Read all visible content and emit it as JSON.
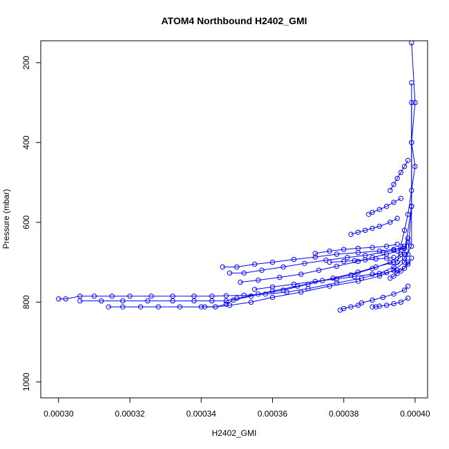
{
  "chart_data": {
    "type": "line",
    "title": "ATOM4 Northbound H2402_GMI",
    "xlabel": "H2402_GMI",
    "ylabel": "Pressure (mbar)",
    "xlim": [
      0.000295,
      0.0004035
    ],
    "ylim": [
      1040,
      145
    ],
    "y_reversed": true,
    "x_ticks": [
      "0.00030",
      "0.00032",
      "0.00034",
      "0.00036",
      "0.00038",
      "0.00040"
    ],
    "x_tick_values": [
      0.0003,
      0.00032,
      0.00034,
      0.00036,
      0.00038,
      0.0004
    ],
    "y_ticks": [
      "200",
      "400",
      "600",
      "800",
      "1000"
    ],
    "y_tick_values": [
      200,
      400,
      600,
      800,
      1000
    ],
    "marker": "open-circle",
    "series_color": "#0000ff",
    "grid": false,
    "series": [
      {
        "x": [
          0.0003,
          0.000302,
          0.000306,
          0.00031,
          0.000315,
          0.00032,
          0.000326,
          0.000332,
          0.000338,
          0.000343,
          0.000347,
          0.000352,
          0.000358,
          0.000364,
          0.00037,
          0.000378,
          0.000385,
          0.00039,
          0.000394,
          0.000397,
          0.000399,
          0.000399,
          0.000399,
          0.000399
        ],
        "y": [
          792,
          792,
          785,
          785,
          785,
          785,
          785,
          785,
          785,
          785,
          784,
          783,
          780,
          775,
          766,
          752,
          740,
          728,
          712,
          690,
          660,
          560,
          400,
          250
        ]
      },
      {
        "x": [
          0.000314,
          0.000318,
          0.000323,
          0.000328,
          0.000334,
          0.00034,
          0.000344,
          0.000348,
          0.000354,
          0.00036,
          0.000368,
          0.000376,
          0.000384,
          0.00039,
          0.000394,
          0.000397,
          0.000398,
          0.000399,
          0.000399
        ],
        "y": [
          812,
          812,
          812,
          812,
          812,
          812,
          812,
          808,
          800,
          788,
          775,
          760,
          748,
          735,
          720,
          700,
          680,
          560,
          300
        ]
      },
      {
        "x": [
          0.000306,
          0.000312,
          0.000318,
          0.000325,
          0.000332,
          0.000338,
          0.000343,
          0.000347,
          0.00035,
          0.000356,
          0.000363,
          0.00037,
          0.000377,
          0.000384,
          0.000389,
          0.000394,
          0.000397,
          0.000399
        ],
        "y": [
          797,
          797,
          797,
          797,
          797,
          797,
          797,
          797,
          790,
          780,
          770,
          755,
          740,
          725,
          712,
          700,
          680,
          560
        ]
      },
      {
        "x": [
          0.000341,
          0.000344,
          0.000347,
          0.000349,
          0.000354,
          0.00036,
          0.000367,
          0.000374,
          0.000382,
          0.000388,
          0.000393,
          0.000396,
          0.000398
        ],
        "y": [
          812,
          812,
          805,
          795,
          785,
          772,
          760,
          746,
          732,
          716,
          700,
          680,
          650
        ]
      },
      {
        "x": [
          0.000346,
          0.00035,
          0.000355,
          0.00036,
          0.000366,
          0.000372,
          0.000378,
          0.000384,
          0.00039,
          0.000394,
          0.000397,
          0.000398
        ],
        "y": [
          712,
          712,
          705,
          700,
          693,
          687,
          680,
          676,
          672,
          668,
          665,
          640
        ]
      },
      {
        "x": [
          0.000348,
          0.000352,
          0.000357,
          0.000363,
          0.000369,
          0.000375,
          0.000381,
          0.000386,
          0.000391,
          0.000394,
          0.000397
        ],
        "y": [
          727,
          727,
          720,
          712,
          703,
          695,
          688,
          683,
          675,
          670,
          660
        ]
      },
      {
        "x": [
          0.000351,
          0.000356,
          0.000362,
          0.000368,
          0.000373,
          0.000378,
          0.000384,
          0.000388,
          0.000392,
          0.000395,
          0.000397
        ],
        "y": [
          750,
          745,
          738,
          730,
          720,
          710,
          698,
          688,
          680,
          672,
          665
        ]
      },
      {
        "x": [
          0.000355,
          0.00036,
          0.000366,
          0.000372,
          0.000378,
          0.000383,
          0.000388,
          0.000392,
          0.000395,
          0.000397,
          0.000398
        ],
        "y": [
          768,
          762,
          755,
          748,
          742,
          736,
          730,
          726,
          720,
          715,
          700
        ]
      },
      {
        "x": [
          0.000372,
          0.000376,
          0.00038,
          0.000384,
          0.000388,
          0.000392,
          0.000395
        ],
        "y": [
          678,
          672,
          668,
          665,
          663,
          660,
          655
        ]
      },
      {
        "x": [
          0.000376,
          0.00038,
          0.000383,
          0.000386,
          0.000389,
          0.000392,
          0.000394
        ],
        "y": [
          700,
          698,
          696,
          694,
          692,
          690,
          688
        ]
      },
      {
        "x": [
          0.000382,
          0.000384,
          0.000386,
          0.000388,
          0.00039,
          0.000393,
          0.000395
        ],
        "y": [
          630,
          625,
          620,
          615,
          610,
          600,
          590
        ]
      },
      {
        "x": [
          0.000387,
          0.000388,
          0.00039,
          0.000392,
          0.000394,
          0.000396
        ],
        "y": [
          580,
          575,
          568,
          560,
          550,
          540
        ]
      },
      {
        "x": [
          0.000393,
          0.000394,
          0.000395,
          0.000396,
          0.000397,
          0.000398
        ],
        "y": [
          520,
          505,
          490,
          475,
          460,
          445
        ]
      },
      {
        "x": [
          0.000379,
          0.00038,
          0.000382,
          0.000384,
          0.000385,
          0.000388,
          0.000391,
          0.000394,
          0.000397,
          0.000398
        ],
        "y": [
          820,
          816,
          812,
          808,
          802,
          795,
          788,
          780,
          770,
          760
        ]
      },
      {
        "x": [
          0.000388,
          0.000389,
          0.00039,
          0.000392,
          0.000394,
          0.000396,
          0.000398
        ],
        "y": [
          812,
          812,
          810,
          808,
          804,
          800,
          790
        ]
      },
      {
        "x": [
          0.000393,
          0.000394,
          0.000395,
          0.000396,
          0.000397,
          0.000398,
          0.000399
        ],
        "y": [
          740,
          735,
          728,
          722,
          715,
          705,
          690
        ]
      },
      {
        "x": [
          0.000395,
          0.000396,
          0.000397,
          0.000398,
          0.000399,
          0.0004,
          0.000399,
          0.0004,
          0.000399
        ],
        "y": [
          700,
          660,
          620,
          580,
          520,
          460,
          400,
          300,
          150
        ]
      }
    ]
  }
}
